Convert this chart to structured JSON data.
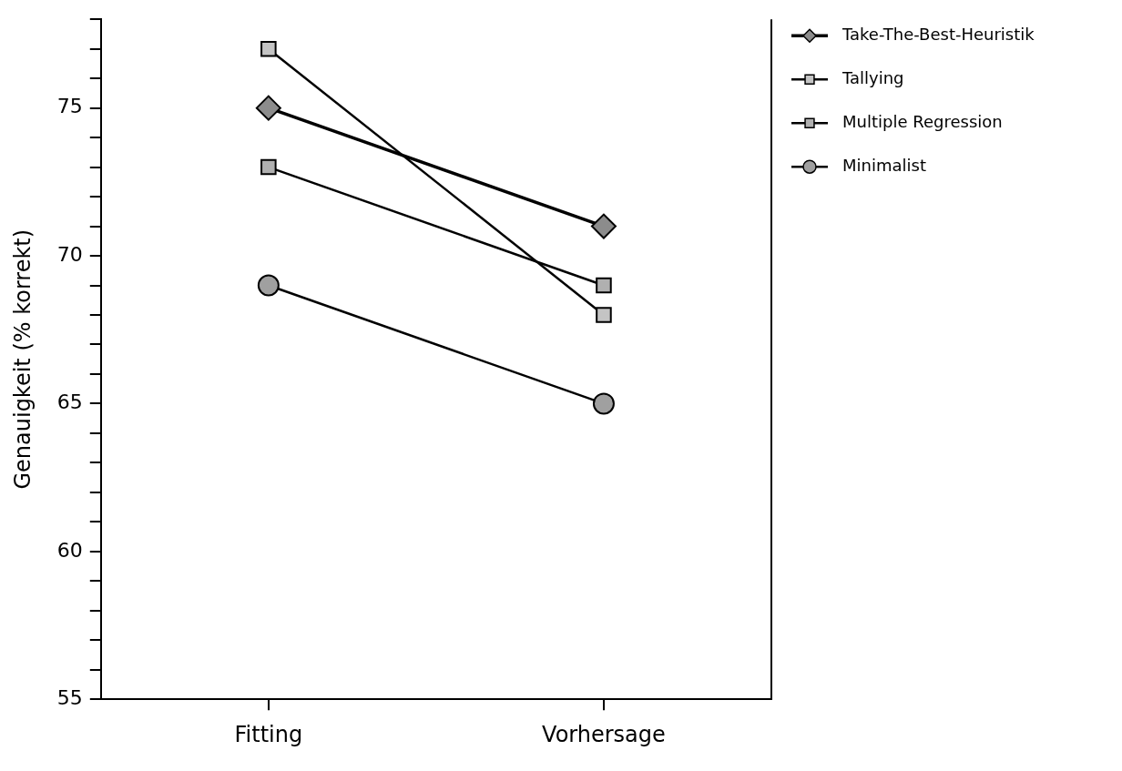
{
  "chart_data": {
    "type": "line",
    "ylabel": "Genauigkeit (% korrekt)",
    "categories": [
      "Fitting",
      "Vorhersage"
    ],
    "series": [
      {
        "name": "Take-The-Best-Heuristik",
        "color": "#8c8c8c",
        "marker": "diamond",
        "values": [
          75,
          71
        ]
      },
      {
        "name": "Tallying",
        "color": "#c4c4c4",
        "marker": "square",
        "values": [
          77,
          68
        ]
      },
      {
        "name": "Multiple Regression",
        "color": "#b0b0b0",
        "marker": "square",
        "values": [
          73,
          69
        ]
      },
      {
        "name": "Minimalist",
        "color": "#a0a0a0",
        "marker": "circle",
        "values": [
          69,
          65
        ]
      }
    ],
    "ylim": [
      55,
      78
    ],
    "yticks": [
      55,
      {
        "value": 56,
        "label": null
      },
      {
        "value": 57,
        "label": null
      },
      {
        "value": 58,
        "label": null
      },
      {
        "value": 59,
        "label": null
      },
      60,
      {
        "value": 61,
        "label": null
      },
      {
        "value": 62,
        "label": null
      },
      {
        "value": 63,
        "label": null
      },
      {
        "value": 64,
        "label": null
      },
      65,
      {
        "value": 66,
        "label": null
      },
      {
        "value": 67,
        "label": null
      },
      {
        "value": 68,
        "label": null
      },
      {
        "value": 69,
        "label": null
      },
      70,
      {
        "value": 71,
        "label": null
      },
      {
        "value": 72,
        "label": null
      },
      {
        "value": 73,
        "label": null
      },
      {
        "value": 74,
        "label": null
      },
      75,
      {
        "value": 76,
        "label": null
      },
      {
        "value": 77,
        "label": null
      },
      {
        "value": 78,
        "label": null
      }
    ],
    "grid": false,
    "legend": "right",
    "line_style": "solid"
  }
}
